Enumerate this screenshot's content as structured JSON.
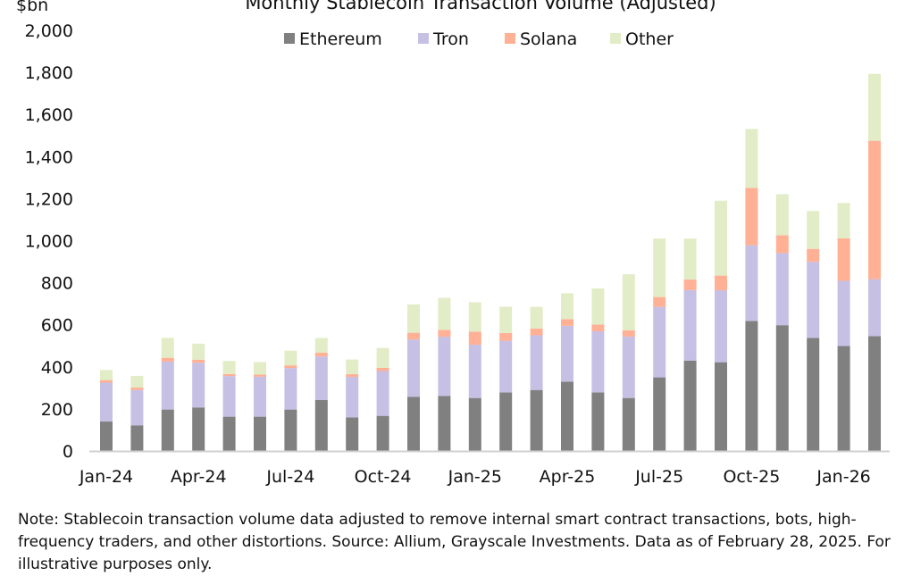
{
  "chart_data": {
    "type": "bar",
    "stacked": true,
    "title": "Monthly Stablecoin Transaction Volume (Adjusted)",
    "ylabel": "$bn",
    "xlabel": "",
    "ylim": [
      0,
      2000
    ],
    "yticks": [
      0,
      200,
      400,
      600,
      800,
      1000,
      1200,
      1400,
      1600,
      1800,
      2000
    ],
    "ytick_labels": [
      "0",
      "200",
      "400",
      "600",
      "800",
      "1,000",
      "1,200",
      "1,400",
      "1,600",
      "1,800",
      "2,000"
    ],
    "grid": false,
    "legend_position": "top",
    "categories": [
      "Jan-24",
      "Feb-24",
      "Mar-24",
      "Apr-24",
      "May-24",
      "Jun-24",
      "Jul-24",
      "Aug-24",
      "Sep-24",
      "Oct-24",
      "Nov-24",
      "Dec-24",
      "Jan-25",
      "Feb-25",
      "Mar-25",
      "Apr-25",
      "May-25",
      "Jun-25",
      "Jul-25",
      "Aug-25",
      "Sep-25",
      "Oct-25",
      "Nov-25",
      "Dec-25",
      "Jan-26",
      "Feb-26"
    ],
    "xtick_labels": [
      "Jan-24",
      "Apr-24",
      "Jul-24",
      "Oct-24",
      "Jan-25",
      "Apr-25",
      "Jul-25",
      "Oct-25",
      "Jan-26"
    ],
    "series": [
      {
        "name": "Ethereum",
        "color": "#808080",
        "values": [
          140,
          122,
          197,
          207,
          163,
          163,
          197,
          243,
          160,
          167,
          258,
          262,
          252,
          278,
          290,
          330,
          278,
          252,
          350,
          430,
          422,
          618,
          598,
          538,
          499,
          546
        ]
      },
      {
        "name": "Tron",
        "color": "#c5c0e4",
        "values": [
          185,
          168,
          228,
          212,
          193,
          190,
          197,
          206,
          192,
          213,
          272,
          281,
          253,
          246,
          260,
          265,
          291,
          292,
          335,
          335,
          342,
          360,
          343,
          361,
          310,
          271
        ]
      },
      {
        "name": "Solana",
        "color": "#ffb095",
        "values": [
          12,
          12,
          18,
          15,
          10,
          10,
          13,
          18,
          13,
          15,
          32,
          33,
          62,
          37,
          32,
          32,
          32,
          30,
          47,
          50,
          70,
          273,
          85,
          62,
          202,
          658
        ]
      },
      {
        "name": "Other",
        "color": "#e2ecc6",
        "values": [
          48,
          55,
          95,
          76,
          62,
          60,
          70,
          70,
          70,
          95,
          135,
          152,
          140,
          125,
          103,
          123,
          172,
          266,
          278,
          195,
          356,
          280,
          195,
          180,
          168,
          318
        ]
      }
    ]
  },
  "note": "Note: Stablecoin transaction volume data adjusted to remove internal smart contract transactions, bots, high-frequency traders, and other distortions. Source: Allium, Grayscale Investments. Data as of February 28, 2025. For illustrative purposes only."
}
